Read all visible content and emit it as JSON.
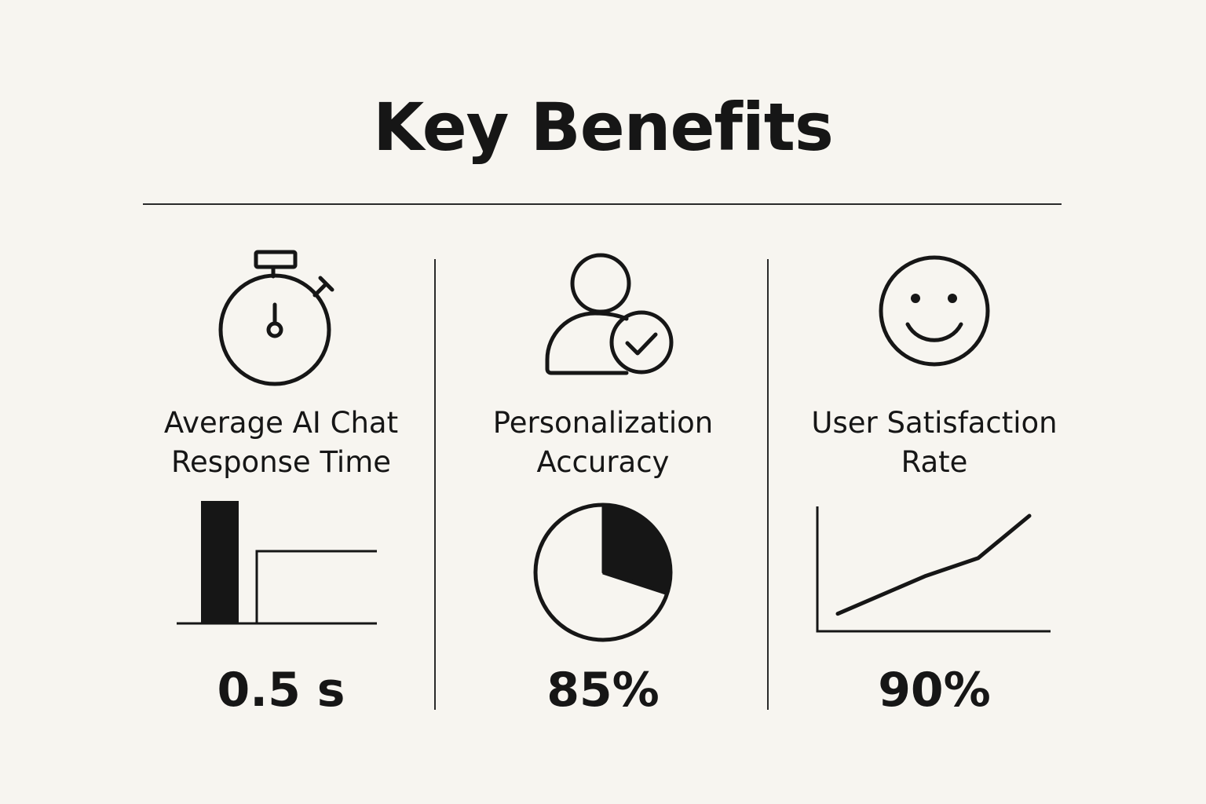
{
  "title": "Key Benefits",
  "accent_color": "#161616",
  "background_color": "#f7f5f0",
  "benefits": [
    {
      "icon": "stopwatch-icon",
      "label_line1": "Average AI Chat",
      "label_line2": "Response Time",
      "value": "0.5 s",
      "chart": {
        "type": "bar",
        "values": [
          1.0,
          0.6
        ]
      }
    },
    {
      "icon": "user-check-icon",
      "label_line1": "Personalization",
      "label_line2": "Accuracy",
      "value": "85%",
      "chart": {
        "type": "pie",
        "highlighted_fraction": 0.3
      }
    },
    {
      "icon": "smiley-face-icon",
      "label_line1": "User Satisfaction",
      "label_line2": "Rate",
      "value": "90%",
      "chart": {
        "type": "line",
        "values": [
          0.14,
          0.47,
          0.63,
          1.0
        ]
      }
    }
  ]
}
